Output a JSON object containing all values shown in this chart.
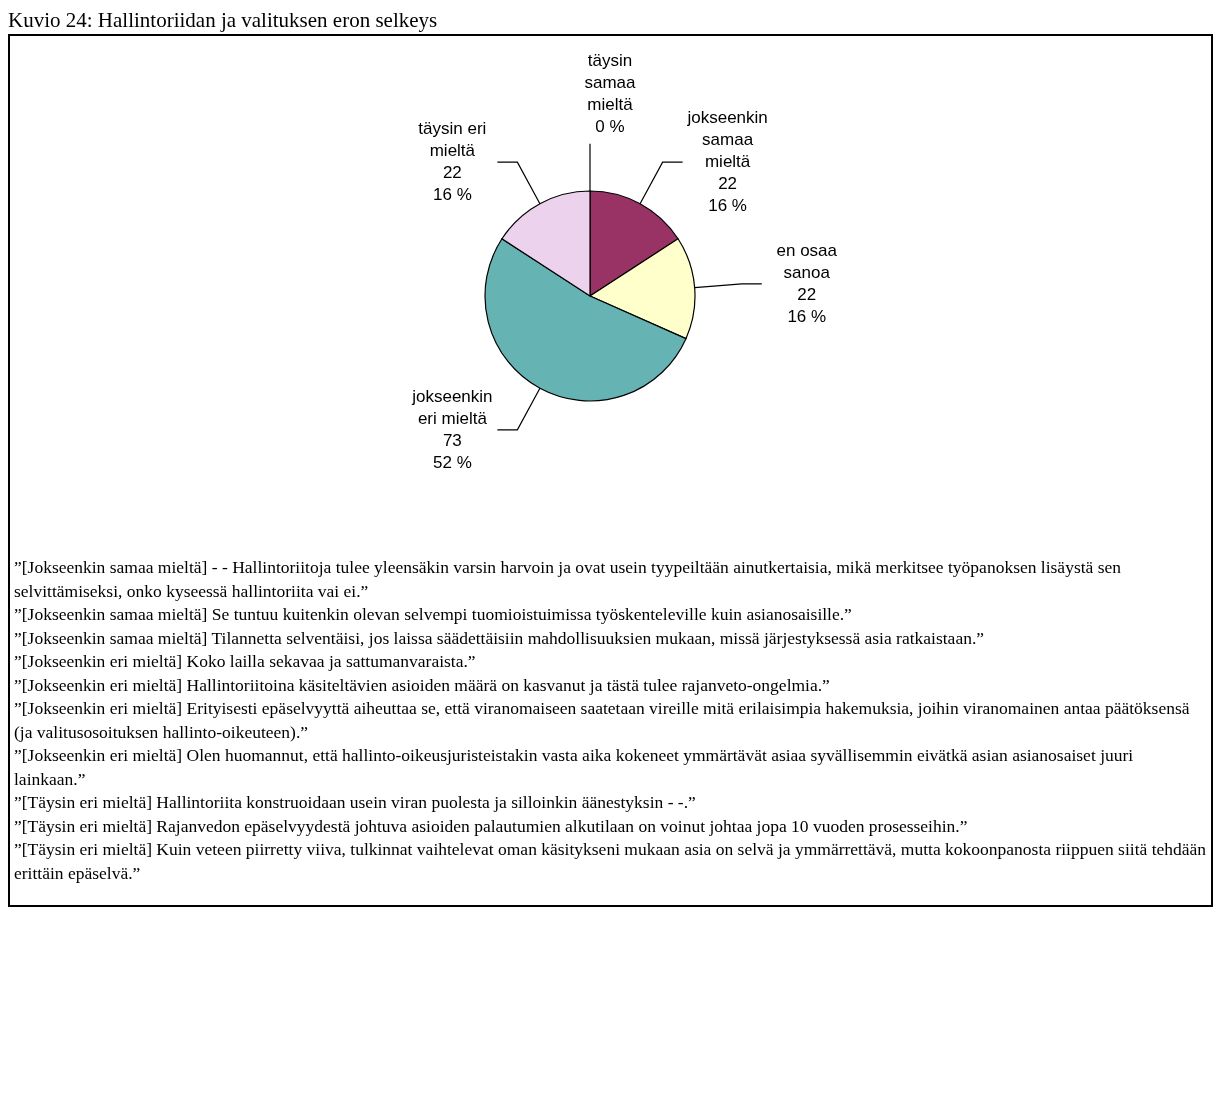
{
  "chart_data": {
    "type": "pie",
    "title": "Kuvio 24: Hallintoriidan ja valituksen eron selkeys",
    "categories": [
      "täysin samaa mieltä",
      "jokseenkin samaa mieltä",
      "en osaa sanoa",
      "jokseenkin eri mieltä",
      "täysin eri mieltä"
    ],
    "values": [
      0,
      22,
      22,
      73,
      22
    ],
    "value_labels": [
      "0 %",
      "22\n16 %",
      "22\n16 %",
      "73\n52 %",
      "22\n16 %"
    ],
    "colors": [
      "#9999ff",
      "#993366",
      "#ffffcc",
      "#66b3b3",
      "#ecd2ec"
    ],
    "annotations": [
      "”[Jokseenkin samaa mieltä] - - Hallintoriitoja tulee yleensäkin varsin harvoin ja ovat usein tyypeiltään ainutkertaisia, mikä merkitsee työpanoksen lisäystä sen selvittämiseksi, onko kyseessä hallintoriita vai ei.”",
      "”[Jokseenkin samaa mieltä] Se tuntuu kuitenkin olevan selvempi tuomioistuimissa työskenteleville kuin asianosaisille.”",
      "”[Jokseenkin samaa mieltä] Tilannetta selventäisi, jos laissa säädettäisiin mahdollisuuksien mukaan, missä järjestyksessä asia ratkaistaan.”",
      "”[Jokseenkin eri mieltä] Koko lailla sekavaa ja sattumanvaraista.”",
      "”[Jokseenkin eri mieltä] Hallintoriitoina käsiteltävien asioiden määrä on kasvanut ja tästä tulee rajanveto-ongelmia.”",
      "”[Jokseenkin eri mieltä] Erityisesti epäselvyyttä aiheuttaa se, että viranomaiseen saatetaan vireille mitä erilaisimpia hakemuksia, joihin viranomainen antaa päätöksensä (ja valitusosoituksen hallinto-oikeuteen).”",
      "”[Jokseenkin eri mieltä] Olen huomannut, että hallinto-oikeusjuristeistakin vasta aika kokeneet ymmärtävät asiaa syvällisemmin eivätkä asian asianosaiset juuri lainkaan.”",
      "”[Täysin eri mieltä] Hallintoriita konstruoidaan usein viran puolesta ja silloinkin äänestyksin - -.”",
      "”[Täysin eri mieltä] Rajanvedon epäselvyydestä johtuva asioiden palautumien alkutilaan on voinut johtaa jopa 10 vuoden prosesseihin.”",
      "”[Täysin eri mieltä] Kuin veteen piirretty viiva, tulkinnat vaihtelevat oman käsitykseni mukaan asia on selvä ja ymmärrettävä, mutta kokoonpanosta riippuen siitä tehdään erittäin epäselvä.”"
    ]
  }
}
